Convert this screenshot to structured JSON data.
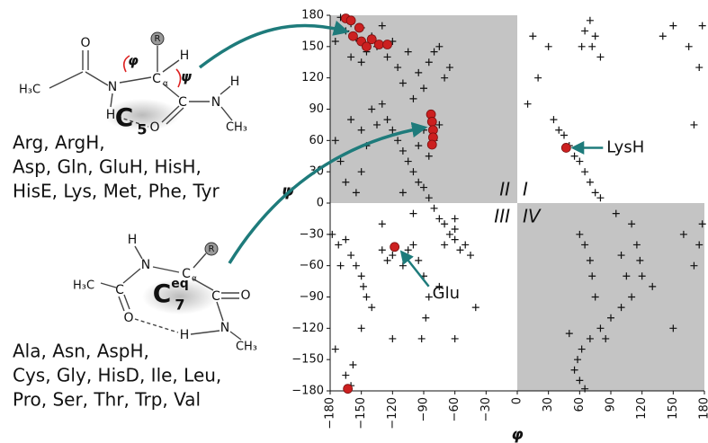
{
  "chart_data": {
    "type": "scatter",
    "xlabel": "φ",
    "ylabel": "ψ",
    "xlim": [
      -180,
      180
    ],
    "ylim": [
      -180,
      180
    ],
    "xticks": [
      {
        "value": -180,
        "label": "−180"
      },
      {
        "value": -150,
        "label": "−150"
      },
      {
        "value": -120,
        "label": "−120"
      },
      {
        "value": -90,
        "label": "−90"
      },
      {
        "value": -60,
        "label": "−60"
      },
      {
        "value": -30,
        "label": "−30"
      },
      0,
      30,
      60,
      90,
      120,
      150,
      180
    ],
    "yticks": [
      {
        "value": -180,
        "label": "−180"
      },
      {
        "value": -150,
        "label": "−150"
      },
      {
        "value": -120,
        "label": "−120"
      },
      {
        "value": -90,
        "label": "−90"
      },
      {
        "value": -60,
        "label": "−60"
      },
      {
        "value": -30,
        "label": "−30"
      },
      0,
      30,
      60,
      90,
      120,
      150,
      180
    ],
    "grid": false,
    "quadrant_labels": [
      "II",
      "I",
      "III",
      "IV"
    ],
    "annotations": [
      "LysH",
      "Glu"
    ],
    "series": [
      {
        "color": "#111111",
        "marker": "cross",
        "x": [
          -170,
          -165,
          -160,
          -155,
          -150,
          -145,
          -140,
          -135,
          -130,
          -125,
          -120,
          -115,
          -150,
          -160,
          -175,
          -105,
          -95,
          -90,
          -85,
          -80,
          -75,
          -70,
          -65,
          -100,
          -110,
          -130,
          -125,
          -120,
          -115,
          -110,
          -105,
          -100,
          -95,
          -90,
          -85,
          -80,
          -75,
          -70,
          -65,
          -60,
          -55,
          -50,
          -45,
          -60,
          -70,
          -140,
          -135,
          -150,
          -145,
          -160,
          -170,
          -175,
          -165,
          -155,
          -150,
          -90,
          -95,
          -85,
          -80,
          -75,
          -100,
          -110,
          -60,
          -178,
          -172,
          -165,
          -160,
          -155,
          -150,
          -148,
          -145,
          -140,
          -170,
          -130,
          -125,
          -120,
          -110,
          -105,
          -100,
          -95,
          -90,
          -85,
          -88,
          -92,
          -130,
          -150,
          -175,
          -120,
          -75,
          -60,
          -40,
          -165,
          -160,
          -158,
          70,
          65,
          75,
          72,
          80,
          62,
          30,
          20,
          10,
          40,
          45,
          50,
          55,
          60,
          65,
          70,
          75,
          80,
          35,
          15,
          140,
          150,
          165,
          178,
          175,
          170,
          60,
          65,
          70,
          72,
          75,
          110,
          115,
          118,
          120,
          110,
          100,
          90,
          80,
          70,
          62,
          58,
          55,
          60,
          65,
          50,
          85,
          105,
          100,
          95,
          130,
          150,
          170,
          175,
          160,
          178
        ],
        "values": [
          178,
          165,
          172,
          158,
          168,
          145,
          160,
          150,
          170,
          140,
          155,
          130,
          135,
          140,
          155,
          145,
          125,
          110,
          135,
          145,
          150,
          120,
          130,
          100,
          115,
          95,
          80,
          70,
          60,
          50,
          40,
          30,
          20,
          15,
          5,
          -5,
          -15,
          -20,
          -30,
          -35,
          -45,
          -40,
          -50,
          -25,
          -40,
          90,
          75,
          70,
          55,
          80,
          40,
          60,
          20,
          10,
          30,
          70,
          55,
          45,
          60,
          75,
          -10,
          10,
          -15,
          -30,
          -40,
          -35,
          -50,
          -60,
          -70,
          -80,
          -90,
          -100,
          -60,
          -45,
          -55,
          -50,
          -60,
          -45,
          -40,
          -55,
          -70,
          -90,
          -110,
          -130,
          -20,
          -120,
          -140,
          -130,
          -80,
          -130,
          -100,
          -165,
          -175,
          -155,
          175,
          165,
          160,
          150,
          140,
          150,
          150,
          120,
          95,
          70,
          65,
          55,
          45,
          40,
          30,
          20,
          10,
          5,
          80,
          160,
          160,
          170,
          150,
          170,
          130,
          75,
          -30,
          -40,
          -55,
          -70,
          -90,
          -20,
          -40,
          -55,
          -70,
          -90,
          -100,
          -110,
          -120,
          -130,
          -140,
          -150,
          -160,
          -170,
          -178,
          -125,
          -130,
          -70,
          -50,
          -10,
          -80,
          -120,
          -60,
          -40,
          -30,
          -20
        ]
      },
      {
        "color": "#cc2020",
        "marker": "dot",
        "x": [
          -165,
          -160,
          -152,
          -158,
          -150,
          -145,
          -140,
          -133,
          -125,
          -83,
          -82,
          -81,
          -81,
          -82,
          47,
          -118,
          -163
        ],
        "values": [
          177,
          175,
          168,
          160,
          155,
          150,
          157,
          152,
          152,
          85,
          78,
          70,
          63,
          56,
          53,
          -42,
          -178
        ]
      }
    ]
  },
  "diagrams": [
    {
      "labels": [
        "H₃C",
        "O",
        "N",
        "R",
        "H",
        "C",
        "α",
        "φ",
        "ψ",
        "C",
        "5",
        "C",
        "N",
        "H",
        "CH₃",
        "O",
        "H"
      ]
    },
    {
      "labels": [
        "H",
        "N",
        "C",
        "α",
        "R",
        "H₃C",
        "C",
        "O",
        "C",
        "7",
        "eq",
        "O",
        "C",
        "N",
        "H",
        "CH₃"
      ]
    }
  ],
  "residue_lists": [
    [
      "Arg, ArgH,",
      "Asp, Gln, GluH, HisH,",
      "HisE, Lys, Met, Phe, Tyr"
    ],
    [
      "Ala, Asn, AspH,",
      "Cys, Gly, HisD, Ile, Leu,",
      "Pro, Ser, Thr, Trp, Val"
    ]
  ]
}
